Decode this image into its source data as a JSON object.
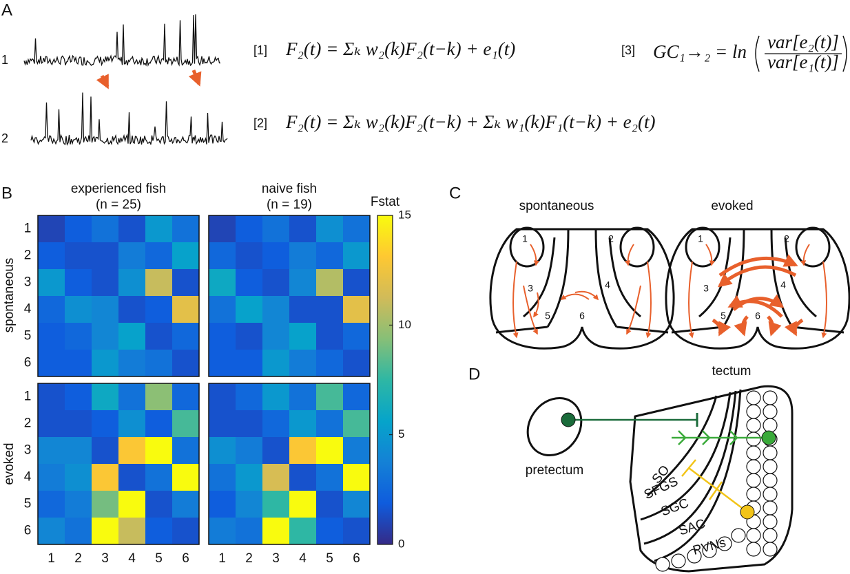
{
  "panels": {
    "A": {
      "label": "A",
      "traces": [
        "1",
        "2"
      ],
      "equations": [
        {
          "number": "[1]",
          "text": "F₂(t) = Σₖ w₂(k)F₂(t−k) + e₁(t)"
        },
        {
          "number": "[2]",
          "text": "F₂(t) = Σₖ w₂(k)F₂(t−k) + Σₖ w₁(k)F₁(t−k) + e₂(t)"
        },
        {
          "number": "[3]",
          "lhs": "GC₁→₂ = ln",
          "numerator": "var[e₂(t)]",
          "denominator": "var[e₁(t)]"
        }
      ]
    },
    "B": {
      "label": "B",
      "columns": [
        {
          "title": "experienced fish",
          "n": "(n = 25)"
        },
        {
          "title": "naive fish",
          "n": "(n = 19)"
        }
      ],
      "rows": [
        "spontaneous",
        "evoked"
      ],
      "axis_labels": [
        "1",
        "2",
        "3",
        "4",
        "5",
        "6"
      ],
      "colorbar": {
        "title": "Fstat",
        "lim": [
          0,
          15
        ],
        "ticks": [
          0,
          5,
          10,
          15
        ],
        "colormap": [
          "#352a87",
          "#0f5cdd",
          "#1481d6",
          "#06a4ca",
          "#2eb7a4",
          "#87bf77",
          "#d1bb59",
          "#fec832",
          "#f9fb0e"
        ]
      },
      "heatmaps": [
        [
          [
            1,
            2,
            3,
            1.5,
            5,
            3
          ],
          [
            2,
            1.5,
            1.5,
            3.5,
            2.5,
            5.5
          ],
          [
            5,
            2,
            1.5,
            4.5,
            11,
            1.5
          ],
          [
            2.5,
            4.5,
            4,
            1.5,
            2,
            12
          ],
          [
            2,
            2.5,
            4,
            5.5,
            1.5,
            2.5
          ],
          [
            2,
            2,
            5,
            3.5,
            3,
            1.5
          ]
        ],
        [
          [
            1,
            2,
            3,
            1.5,
            4.5,
            3
          ],
          [
            2.5,
            1.5,
            2,
            3.5,
            2.5,
            5
          ],
          [
            6,
            2,
            1.5,
            4,
            10.5,
            1.5
          ],
          [
            3,
            5.5,
            4,
            1.5,
            1.5,
            12
          ],
          [
            2,
            1.5,
            4,
            5.5,
            1.5,
            2.5
          ],
          [
            2,
            2,
            5,
            3.5,
            2.5,
            1.5
          ]
        ],
        [
          [
            1.5,
            2,
            6,
            3,
            9.5,
            2.5
          ],
          [
            1.5,
            1.5,
            2,
            4.5,
            2,
            8
          ],
          [
            4,
            4,
            1.5,
            13,
            15,
            3
          ],
          [
            3.5,
            4.5,
            13,
            1.5,
            3,
            15
          ],
          [
            2.5,
            3.5,
            9,
            15,
            1.5,
            3.5
          ],
          [
            4,
            3,
            15,
            11,
            2,
            1.5
          ]
        ],
        [
          [
            1.5,
            2.5,
            5,
            3,
            8,
            2.5
          ],
          [
            1.5,
            1.5,
            2.5,
            5,
            3,
            8
          ],
          [
            4.5,
            3.5,
            1.5,
            13,
            15,
            3.5
          ],
          [
            3,
            5,
            11.5,
            1.5,
            3,
            15
          ],
          [
            2,
            4,
            7.5,
            15,
            1.5,
            4
          ],
          [
            3.5,
            3,
            15,
            7.5,
            2,
            1.5
          ]
        ]
      ]
    },
    "C": {
      "label": "C",
      "conditions": [
        "spontaneous",
        "evoked"
      ],
      "regions": [
        "1",
        "2",
        "3",
        "4",
        "5",
        "6"
      ]
    },
    "D": {
      "label": "D",
      "tectum": "tectum",
      "pretectum": "pretectum",
      "layers": [
        "SO",
        "SFGS",
        "SGC",
        "SAC",
        "PVNs"
      ]
    }
  }
}
